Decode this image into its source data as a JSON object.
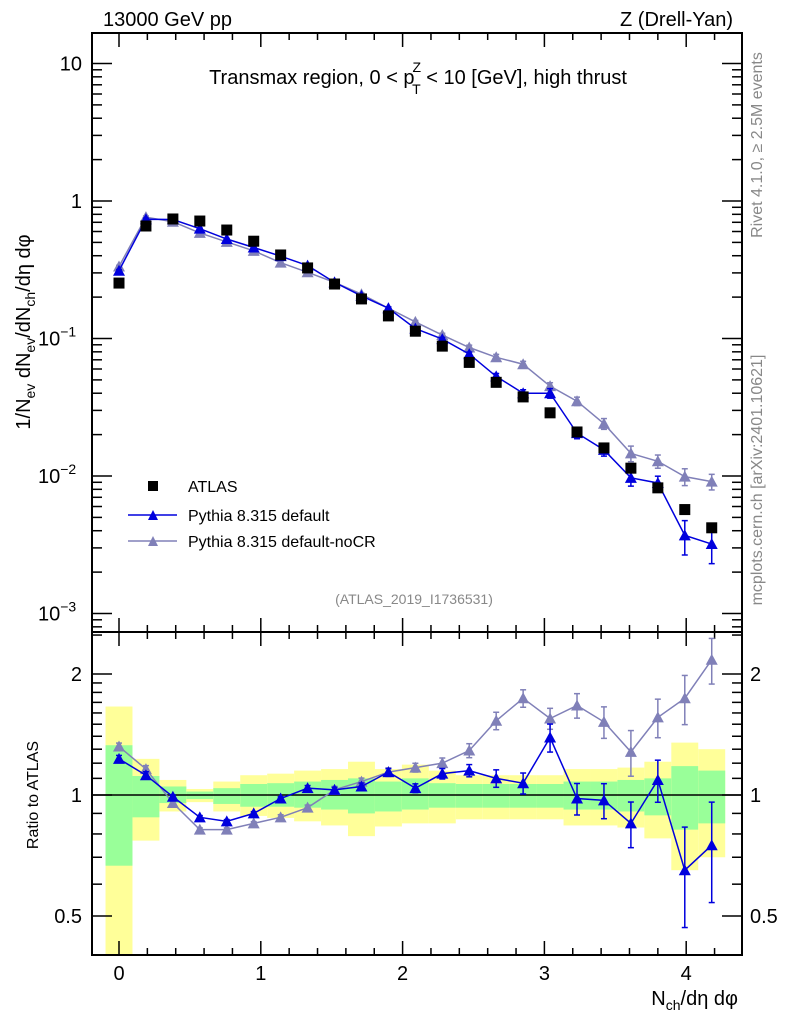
{
  "header": {
    "left": "13000 GeV pp",
    "right": "Z (Drell-Yan)"
  },
  "side": {
    "rivet": "Rivet 4.1.0, ≥ 2.5M events",
    "mcplots": "mcplots.cern.ch [arXiv:2401.10621]"
  },
  "chart_data": [
    {
      "type": "scatter",
      "title": "Transmax region, 0 < p_T^Z < 10 [GeV], high thrust",
      "title_parts": [
        "Transmax region, 0 < p",
        "Z",
        "T",
        " < 10 [GeV], high thrust"
      ],
      "ylabel": "1/N_ev dN_ev/dN_ch/dη dφ",
      "ylabel_parts": [
        "1/N",
        "ev",
        " dN",
        "ev",
        "/dN",
        "ch",
        "/dη dφ"
      ],
      "yscale": "log",
      "ylim": [
        0.00074,
        16.6
      ],
      "xlim": [
        -0.19,
        4.39
      ],
      "yticks": [
        {
          "v": 10,
          "label": "10"
        },
        {
          "v": 1,
          "label": "1"
        },
        {
          "v": 0.1,
          "label": "10",
          "exp": "−1"
        },
        {
          "v": 0.01,
          "label": "10",
          "exp": "−2"
        },
        {
          "v": 0.001,
          "label": "10",
          "exp": "−3"
        }
      ],
      "annotation": "(ATLAS_2019_I1736531)",
      "legend_placement": "bottom-left",
      "x": [
        0,
        0.19,
        0.38,
        0.57,
        0.76,
        0.95,
        1.14,
        1.33,
        1.52,
        1.71,
        1.9,
        2.09,
        2.28,
        2.47,
        2.66,
        2.85,
        3.04,
        3.23,
        3.42,
        3.61,
        3.8,
        3.99,
        4.18
      ],
      "series": [
        {
          "name": "ATLAS",
          "color": "#000000",
          "marker": "square",
          "values": [
            0.253,
            0.658,
            0.74,
            0.715,
            0.615,
            0.51,
            0.405,
            0.326,
            0.249,
            0.194,
            0.146,
            0.113,
            0.088,
            0.067,
            0.048,
            0.0376,
            0.0288,
            0.0209,
            0.016,
            0.0114,
            0.0082,
            0.0057,
            0.0042
          ]
        },
        {
          "name": "Pythia 8.315 default",
          "color": "#0000dd",
          "marker": "triangle",
          "values": [
            0.311,
            0.737,
            0.733,
            0.629,
            0.529,
            0.459,
            0.397,
            0.339,
            0.256,
            0.204,
            0.166,
            0.118,
            0.099,
            0.077,
            0.053,
            0.04,
            0.04,
            0.0205,
            0.0155,
            0.0097,
            0.0089,
            0.0037,
            0.0032
          ],
          "rel_err": [
            0.02,
            0.02,
            0.01,
            0.01,
            0.01,
            0.01,
            0.01,
            0.015,
            0.015,
            0.02,
            0.02,
            0.025,
            0.03,
            0.035,
            0.05,
            0.06,
            0.08,
            0.09,
            0.1,
            0.13,
            0.12,
            0.28,
            0.28
          ]
        },
        {
          "name": "Pythia 8.315 default-noCR",
          "color": "#8080b8",
          "marker": "triangle",
          "values": [
            0.334,
            0.763,
            0.707,
            0.586,
            0.504,
            0.434,
            0.356,
            0.303,
            0.256,
            0.21,
            0.166,
            0.132,
            0.106,
            0.086,
            0.073,
            0.065,
            0.045,
            0.035,
            0.024,
            0.0146,
            0.0128,
            0.0099,
            0.0091
          ],
          "rel_err": [
            0.02,
            0.02,
            0.01,
            0.01,
            0.01,
            0.01,
            0.015,
            0.015,
            0.02,
            0.02,
            0.025,
            0.025,
            0.03,
            0.04,
            0.05,
            0.05,
            0.06,
            0.07,
            0.09,
            0.13,
            0.11,
            0.14,
            0.13
          ]
        }
      ]
    },
    {
      "type": "line",
      "ylabel": "Ratio to ATLAS",
      "xlabel": "N_ch/dη dφ",
      "xlabel_parts": [
        "N",
        "ch",
        "/dη dφ"
      ],
      "yscale": "log",
      "ylim": [
        0.4,
        2.54
      ],
      "xticks": [
        {
          "v": 0,
          "label": "0"
        },
        {
          "v": 1,
          "label": "1"
        },
        {
          "v": 2,
          "label": "2"
        },
        {
          "v": 3,
          "label": "3"
        },
        {
          "v": 4,
          "label": "4"
        }
      ],
      "yticks": [
        {
          "v": 0.5,
          "label": "0.5"
        },
        {
          "v": 1,
          "label": "1"
        },
        {
          "v": 2,
          "label": "2"
        }
      ],
      "x": [
        0,
        0.19,
        0.38,
        0.57,
        0.76,
        0.95,
        1.14,
        1.33,
        1.52,
        1.71,
        1.9,
        2.09,
        2.28,
        2.47,
        2.66,
        2.85,
        3.04,
        3.23,
        3.42,
        3.61,
        3.8,
        3.99,
        4.18
      ],
      "bin_halfwidth": 0.095,
      "bands": {
        "green_color": "#99ff99",
        "yellow_color": "#ffff99",
        "green_hi": [
          1.33,
          1.115,
          1.05,
          1.02,
          1.04,
          1.065,
          1.07,
          1.08,
          1.09,
          1.1,
          1.08,
          1.1,
          1.07,
          1.065,
          1.065,
          1.065,
          1.065,
          1.08,
          1.08,
          1.09,
          1.1,
          1.18,
          1.15
        ],
        "green_lo": [
          0.667,
          0.88,
          0.955,
          0.977,
          0.95,
          0.935,
          0.935,
          0.93,
          0.92,
          0.9,
          0.91,
          0.92,
          0.93,
          0.93,
          0.93,
          0.93,
          0.93,
          0.92,
          0.92,
          0.91,
          0.89,
          0.82,
          0.85
        ],
        "yellow_hi": [
          1.66,
          1.23,
          1.09,
          1.035,
          1.08,
          1.12,
          1.13,
          1.15,
          1.16,
          1.21,
          1.16,
          1.19,
          1.15,
          1.12,
          1.12,
          1.12,
          1.12,
          1.16,
          1.16,
          1.17,
          1.21,
          1.35,
          1.3
        ],
        "yellow_lo": [
          0.3,
          0.77,
          0.91,
          0.96,
          0.91,
          0.887,
          0.877,
          0.86,
          0.84,
          0.79,
          0.835,
          0.85,
          0.85,
          0.87,
          0.87,
          0.87,
          0.87,
          0.84,
          0.84,
          0.83,
          0.78,
          0.65,
          0.7
        ]
      },
      "series": [
        {
          "name": "Pythia 8.315 default",
          "color": "#0000dd",
          "values": [
            1.23,
            1.12,
            0.99,
            0.88,
            0.86,
            0.9,
            0.98,
            1.04,
            1.03,
            1.05,
            1.14,
            1.04,
            1.13,
            1.15,
            1.1,
            1.07,
            1.39,
            0.98,
            0.97,
            0.85,
            1.09,
            0.65,
            0.75
          ],
          "rel_err": [
            0.02,
            0.02,
            0.01,
            0.01,
            0.01,
            0.01,
            0.01,
            0.015,
            0.015,
            0.02,
            0.02,
            0.025,
            0.03,
            0.035,
            0.05,
            0.06,
            0.08,
            0.09,
            0.1,
            0.13,
            0.12,
            0.28,
            0.28
          ]
        },
        {
          "name": "Pythia 8.315 default-noCR",
          "color": "#8080b8",
          "values": [
            1.32,
            1.16,
            0.955,
            0.82,
            0.82,
            0.85,
            0.88,
            0.93,
            1.03,
            1.08,
            1.14,
            1.17,
            1.2,
            1.29,
            1.53,
            1.74,
            1.55,
            1.67,
            1.52,
            1.28,
            1.56,
            1.74,
            2.17
          ],
          "rel_err": [
            0.02,
            0.02,
            0.01,
            0.01,
            0.01,
            0.01,
            0.015,
            0.015,
            0.02,
            0.02,
            0.025,
            0.025,
            0.03,
            0.04,
            0.05,
            0.05,
            0.06,
            0.07,
            0.09,
            0.13,
            0.11,
            0.14,
            0.13
          ]
        }
      ]
    }
  ]
}
